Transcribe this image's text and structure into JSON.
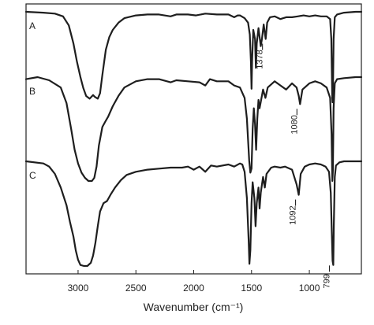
{
  "chart_data": {
    "type": "line",
    "xlabel": "Wavenumber (cm⁻¹)",
    "x_reversed": true,
    "xlim": [
      3450,
      550
    ],
    "x_ticks": [
      3000,
      2500,
      2000,
      1500,
      1000
    ],
    "y_ticks_shown": false,
    "grid": false,
    "legend": "none",
    "series_color": "#1e1e1e",
    "series": [
      {
        "name": "A",
        "points": [
          [
            3450,
            0.0
          ],
          [
            3300,
            0.01
          ],
          [
            3200,
            0.02
          ],
          [
            3130,
            0.05
          ],
          [
            3080,
            0.15
          ],
          [
            3040,
            0.35
          ],
          [
            3010,
            0.55
          ],
          [
            2980,
            0.72
          ],
          [
            2955,
            0.84
          ],
          [
            2930,
            0.93
          ],
          [
            2900,
            0.96
          ],
          [
            2870,
            0.92
          ],
          [
            2855,
            0.94
          ],
          [
            2830,
            0.96
          ],
          [
            2810,
            0.9
          ],
          [
            2790,
            0.7
          ],
          [
            2760,
            0.42
          ],
          [
            2730,
            0.28
          ],
          [
            2700,
            0.2
          ],
          [
            2650,
            0.12
          ],
          [
            2600,
            0.07
          ],
          [
            2500,
            0.04
          ],
          [
            2400,
            0.03
          ],
          [
            2300,
            0.03
          ],
          [
            2200,
            0.05
          ],
          [
            2150,
            0.03
          ],
          [
            2050,
            0.03
          ],
          [
            1980,
            0.04
          ],
          [
            1900,
            0.02
          ],
          [
            1800,
            0.03
          ],
          [
            1700,
            0.03
          ],
          [
            1650,
            0.06
          ],
          [
            1620,
            0.04
          ],
          [
            1600,
            0.04
          ],
          [
            1560,
            0.07
          ],
          [
            1530,
            0.12
          ],
          [
            1515,
            0.25
          ],
          [
            1505,
            0.55
          ],
          [
            1500,
            0.85
          ],
          [
            1495,
            0.55
          ],
          [
            1485,
            0.2
          ],
          [
            1470,
            0.3
          ],
          [
            1462,
            0.62
          ],
          [
            1455,
            0.35
          ],
          [
            1440,
            0.18
          ],
          [
            1420,
            0.38
          ],
          [
            1410,
            0.3
          ],
          [
            1395,
            0.14
          ],
          [
            1378,
            0.3
          ],
          [
            1365,
            0.12
          ],
          [
            1340,
            0.06
          ],
          [
            1300,
            0.05
          ],
          [
            1250,
            0.08
          ],
          [
            1200,
            0.06
          ],
          [
            1150,
            0.06
          ],
          [
            1100,
            0.05
          ],
          [
            1050,
            0.04
          ],
          [
            1000,
            0.05
          ],
          [
            950,
            0.04
          ],
          [
            900,
            0.05
          ],
          [
            850,
            0.05
          ],
          [
            820,
            0.08
          ],
          [
            810,
            0.3
          ],
          [
            802,
            0.95
          ],
          [
            799,
            1.0
          ],
          [
            796,
            0.95
          ],
          [
            790,
            0.3
          ],
          [
            780,
            0.06
          ],
          [
            760,
            0.03
          ],
          [
            700,
            0.01
          ],
          [
            600,
            0.0
          ],
          [
            550,
            0.0
          ]
        ]
      },
      {
        "name": "B",
        "points": [
          [
            3450,
            0.02
          ],
          [
            3350,
            0.0
          ],
          [
            3250,
            0.03
          ],
          [
            3150,
            0.1
          ],
          [
            3100,
            0.25
          ],
          [
            3060,
            0.5
          ],
          [
            3030,
            0.7
          ],
          [
            3000,
            0.83
          ],
          [
            2970,
            0.92
          ],
          [
            2940,
            0.97
          ],
          [
            2910,
            1.0
          ],
          [
            2880,
            1.0
          ],
          [
            2860,
            0.97
          ],
          [
            2840,
            0.86
          ],
          [
            2820,
            0.66
          ],
          [
            2790,
            0.48
          ],
          [
            2760,
            0.42
          ],
          [
            2740,
            0.38
          ],
          [
            2700,
            0.28
          ],
          [
            2650,
            0.18
          ],
          [
            2600,
            0.1
          ],
          [
            2500,
            0.04
          ],
          [
            2400,
            0.02
          ],
          [
            2300,
            0.02
          ],
          [
            2200,
            0.05
          ],
          [
            2150,
            0.03
          ],
          [
            2050,
            0.04
          ],
          [
            1950,
            0.05
          ],
          [
            1900,
            0.08
          ],
          [
            1860,
            0.02
          ],
          [
            1800,
            0.04
          ],
          [
            1700,
            0.04
          ],
          [
            1650,
            0.08
          ],
          [
            1600,
            0.1
          ],
          [
            1560,
            0.2
          ],
          [
            1540,
            0.4
          ],
          [
            1520,
            0.8
          ],
          [
            1510,
            0.92
          ],
          [
            1500,
            0.88
          ],
          [
            1490,
            0.5
          ],
          [
            1480,
            0.3
          ],
          [
            1470,
            0.45
          ],
          [
            1460,
            0.7
          ],
          [
            1450,
            0.4
          ],
          [
            1440,
            0.22
          ],
          [
            1430,
            0.3
          ],
          [
            1400,
            0.12
          ],
          [
            1380,
            0.2
          ],
          [
            1360,
            0.1
          ],
          [
            1300,
            0.04
          ],
          [
            1250,
            0.08
          ],
          [
            1200,
            0.12
          ],
          [
            1150,
            0.06
          ],
          [
            1110,
            0.1
          ],
          [
            1092,
            0.18
          ],
          [
            1080,
            0.26
          ],
          [
            1060,
            0.12
          ],
          [
            1000,
            0.06
          ],
          [
            950,
            0.04
          ],
          [
            900,
            0.06
          ],
          [
            850,
            0.1
          ],
          [
            820,
            0.2
          ],
          [
            808,
            0.55
          ],
          [
            801,
            1.0
          ],
          [
            796,
            0.9
          ],
          [
            790,
            0.3
          ],
          [
            780,
            0.06
          ],
          [
            760,
            0.02
          ],
          [
            700,
            0.01
          ],
          [
            600,
            0.0
          ],
          [
            550,
            0.0
          ]
        ]
      },
      {
        "name": "C",
        "points": [
          [
            3450,
            0.0
          ],
          [
            3300,
            0.02
          ],
          [
            3250,
            0.05
          ],
          [
            3200,
            0.12
          ],
          [
            3150,
            0.25
          ],
          [
            3100,
            0.42
          ],
          [
            3070,
            0.58
          ],
          [
            3040,
            0.72
          ],
          [
            3020,
            0.85
          ],
          [
            3000,
            0.94
          ],
          [
            2980,
            0.99
          ],
          [
            2950,
            1.0
          ],
          [
            2920,
            1.0
          ],
          [
            2890,
            0.97
          ],
          [
            2870,
            0.9
          ],
          [
            2850,
            0.78
          ],
          [
            2830,
            0.62
          ],
          [
            2810,
            0.48
          ],
          [
            2780,
            0.4
          ],
          [
            2750,
            0.38
          ],
          [
            2720,
            0.32
          ],
          [
            2680,
            0.25
          ],
          [
            2630,
            0.18
          ],
          [
            2580,
            0.13
          ],
          [
            2500,
            0.1
          ],
          [
            2400,
            0.08
          ],
          [
            2300,
            0.07
          ],
          [
            2200,
            0.06
          ],
          [
            2100,
            0.06
          ],
          [
            2050,
            0.05
          ],
          [
            2000,
            0.08
          ],
          [
            1950,
            0.05
          ],
          [
            1900,
            0.1
          ],
          [
            1850,
            0.04
          ],
          [
            1800,
            0.05
          ],
          [
            1700,
            0.03
          ],
          [
            1650,
            0.05
          ],
          [
            1600,
            0.02
          ],
          [
            1580,
            0.03
          ],
          [
            1560,
            0.1
          ],
          [
            1540,
            0.35
          ],
          [
            1525,
            0.75
          ],
          [
            1518,
            0.98
          ],
          [
            1510,
            0.85
          ],
          [
            1500,
            0.4
          ],
          [
            1490,
            0.2
          ],
          [
            1475,
            0.35
          ],
          [
            1465,
            0.62
          ],
          [
            1455,
            0.4
          ],
          [
            1440,
            0.25
          ],
          [
            1430,
            0.45
          ],
          [
            1420,
            0.3
          ],
          [
            1400,
            0.15
          ],
          [
            1385,
            0.25
          ],
          [
            1370,
            0.12
          ],
          [
            1330,
            0.06
          ],
          [
            1300,
            0.05
          ],
          [
            1250,
            0.06
          ],
          [
            1210,
            0.05
          ],
          [
            1150,
            0.08
          ],
          [
            1110,
            0.22
          ],
          [
            1092,
            0.32
          ],
          [
            1075,
            0.12
          ],
          [
            1040,
            0.05
          ],
          [
            1000,
            0.03
          ],
          [
            950,
            0.02
          ],
          [
            900,
            0.03
          ],
          [
            860,
            0.05
          ],
          [
            830,
            0.1
          ],
          [
            815,
            0.3
          ],
          [
            805,
            0.7
          ],
          [
            799,
            0.95
          ],
          [
            793,
            0.99
          ],
          [
            788,
            0.6
          ],
          [
            780,
            0.15
          ],
          [
            770,
            0.04
          ],
          [
            740,
            0.01
          ],
          [
            700,
            0.0
          ],
          [
            650,
            0.0
          ],
          [
            600,
            0.0
          ],
          [
            550,
            0.0
          ]
        ]
      }
    ],
    "annotations": [
      {
        "series": "A",
        "text": "1378",
        "x": 1378
      },
      {
        "series": "B",
        "text": "1080",
        "x": 1080
      },
      {
        "series": "C",
        "text": "1092",
        "x": 1092
      },
      {
        "series": "C",
        "text": "799",
        "x": 799
      }
    ]
  }
}
